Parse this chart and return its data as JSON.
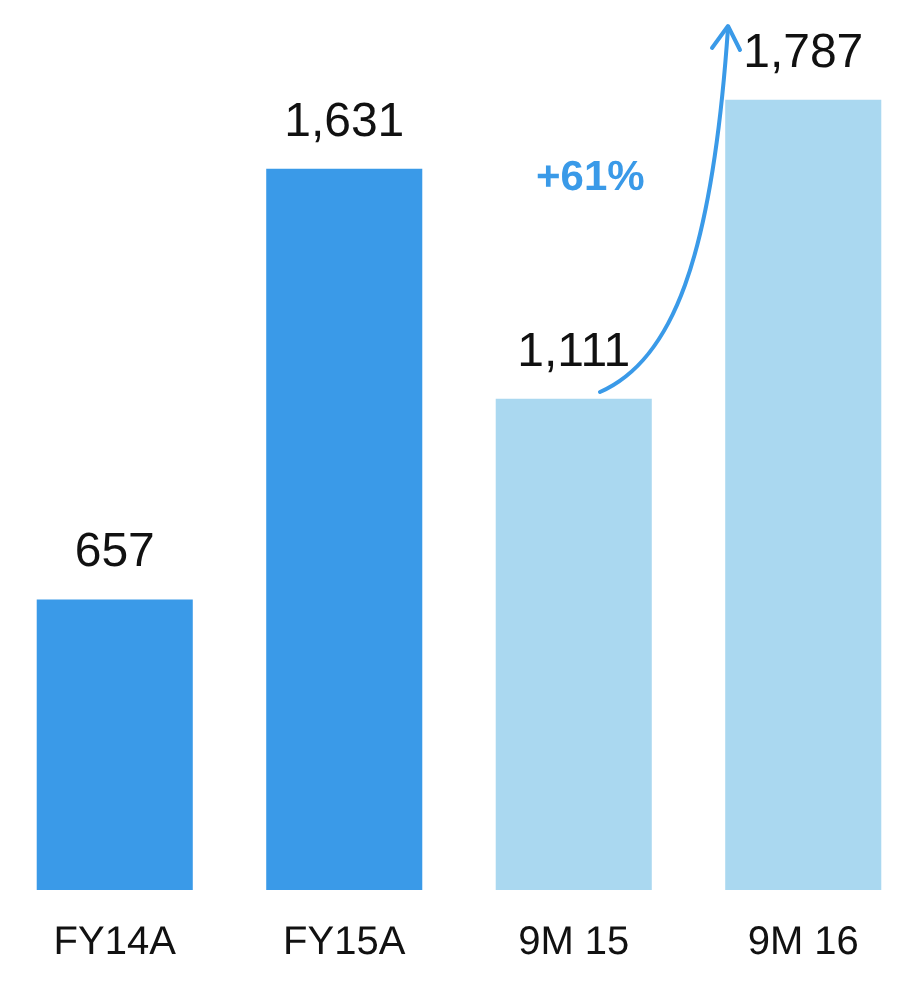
{
  "chart_data": {
    "type": "bar",
    "categories": [
      "FY14A",
      "FY15A",
      "9M 15",
      "9M 16"
    ],
    "values": [
      657,
      1631,
      1111,
      1787
    ],
    "colors": [
      "#3a9ae8",
      "#3a9ae8",
      "#aad8f0",
      "#aad8f0"
    ],
    "value_labels": [
      "657",
      "1,631",
      "1,111",
      "1,787"
    ],
    "annotations": [
      "+61%"
    ]
  }
}
